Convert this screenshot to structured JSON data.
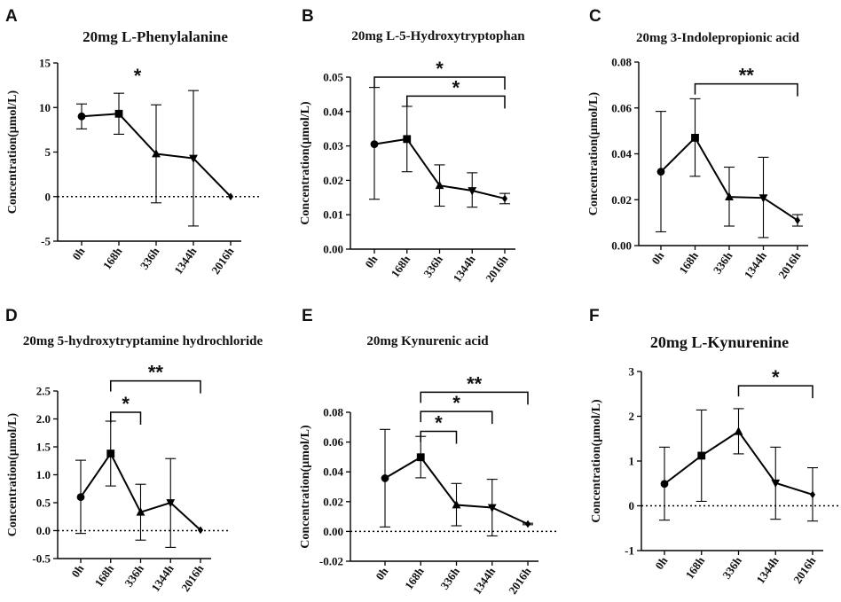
{
  "chart_data": [
    {
      "id": "A",
      "panel_label": "A",
      "type": "line",
      "title": "20mg L-Phenylalanine",
      "xlabel": "",
      "ylabel": "Concentration(μmol/L)",
      "categories": [
        "0h",
        "168h",
        "336h",
        "1344h",
        "2016h"
      ],
      "yticks": [
        -5,
        0,
        5,
        10,
        15
      ],
      "ytick_labels": [
        "-5",
        "0",
        "5",
        "10",
        "15"
      ],
      "ylim": [
        -5,
        15
      ],
      "zero_line": true,
      "series": [
        {
          "name": "20mg L-Phenylalanine",
          "values": [
            9.0,
            9.3,
            4.8,
            4.3,
            0.0
          ],
          "err_low": [
            7.6,
            7.0,
            -0.7,
            -3.3,
            0.0
          ],
          "err_high": [
            10.4,
            11.6,
            10.3,
            11.9,
            0.0
          ],
          "markers": [
            "circle",
            "square",
            "triangle-up",
            "triangle-down",
            "diamond"
          ]
        }
      ],
      "significance": [
        {
          "type": "star",
          "x": 1.5,
          "y": 13.6,
          "label": "*"
        }
      ]
    },
    {
      "id": "B",
      "panel_label": "B",
      "type": "line",
      "title": "20mg L-5-Hydroxytryptophan",
      "xlabel": "",
      "ylabel": "Concentration(μmol/L)",
      "categories": [
        "0h",
        "168h",
        "336h",
        "1344h",
        "2016h"
      ],
      "yticks": [
        0.0,
        0.01,
        0.02,
        0.03,
        0.04,
        0.05
      ],
      "ytick_labels": [
        "0.00",
        "0.01",
        "0.02",
        "0.03",
        "0.04",
        "0.05"
      ],
      "ylim": [
        0,
        0.05
      ],
      "zero_line": false,
      "series": [
        {
          "name": "20mg L-5-Hydroxytryptophan",
          "values": [
            0.0305,
            0.032,
            0.0185,
            0.017,
            0.0147
          ],
          "err_low": [
            0.0145,
            0.0225,
            0.0125,
            0.0122,
            0.0132
          ],
          "err_high": [
            0.047,
            0.0415,
            0.0245,
            0.0222,
            0.0162
          ],
          "markers": [
            "circle",
            "square",
            "triangle-up",
            "triangle-down",
            "diamond"
          ]
        }
      ],
      "significance": [
        {
          "type": "bracket",
          "from": 0,
          "to": 4,
          "y": 0.05,
          "label": "*"
        },
        {
          "type": "bracket",
          "from": 1,
          "to": 4,
          "y": 0.0445,
          "label": "*"
        }
      ]
    },
    {
      "id": "C",
      "panel_label": "C",
      "type": "line",
      "title": "20mg 3-Indolepropionic acid",
      "xlabel": "",
      "ylabel": "Concentration(μmol/L)",
      "categories": [
        "0h",
        "168h",
        "336h",
        "1344h",
        "2016h"
      ],
      "yticks": [
        0.0,
        0.02,
        0.04,
        0.06,
        0.08
      ],
      "ytick_labels": [
        "0.00",
        "0.02",
        "0.04",
        "0.06",
        "0.08"
      ],
      "ylim": [
        0,
        0.08
      ],
      "zero_line": false,
      "series": [
        {
          "name": "20mg 3-Indolepropionic acid",
          "values": [
            0.0322,
            0.047,
            0.0212,
            0.0208,
            0.011
          ],
          "err_low": [
            0.006,
            0.0302,
            0.0085,
            0.0035,
            0.0085
          ],
          "err_high": [
            0.0585,
            0.064,
            0.0342,
            0.0385,
            0.0135
          ],
          "markers": [
            "circle",
            "square",
            "triangle-up",
            "triangle-down",
            "diamond"
          ]
        }
      ],
      "significance": [
        {
          "type": "bracket",
          "from": 1,
          "to": 4,
          "y": 0.0705,
          "label": "**"
        }
      ]
    },
    {
      "id": "D",
      "panel_label": "D",
      "type": "line",
      "title": "20mg 5-hydroxytryptamine hydrochloride",
      "xlabel": "",
      "ylabel": "Concentration(μmol/L)",
      "categories": [
        "0h",
        "168h",
        "336h",
        "1344h",
        "2016h"
      ],
      "yticks": [
        -0.5,
        0.0,
        0.5,
        1.0,
        1.5,
        2.0,
        2.5
      ],
      "ytick_labels": [
        "-0.5",
        "0.0",
        "0.5",
        "1.0",
        "1.5",
        "2.0",
        "2.5"
      ],
      "ylim": [
        -0.5,
        2.5
      ],
      "zero_line": true,
      "series": [
        {
          "name": "20mg 5-hydroxytryptamine hydrochloride",
          "values": [
            0.6,
            1.38,
            0.33,
            0.5,
            0.01
          ],
          "err_low": [
            -0.05,
            0.8,
            -0.17,
            -0.3,
            0.01
          ],
          "err_high": [
            1.26,
            1.96,
            0.83,
            1.29,
            0.01
          ],
          "markers": [
            "circle",
            "square",
            "triangle-up",
            "triangle-down",
            "diamond"
          ]
        }
      ],
      "significance": [
        {
          "type": "bracket",
          "from": 1,
          "to": 4,
          "y": 2.68,
          "label": "**"
        },
        {
          "type": "bracket",
          "from": 1,
          "to": 2,
          "y": 2.12,
          "label": "*"
        }
      ]
    },
    {
      "id": "E",
      "panel_label": "E",
      "type": "line",
      "title": "20mg Kynurenic acid",
      "xlabel": "",
      "ylabel": "Concentration(μmol/L)",
      "categories": [
        "0h",
        "168h",
        "336h",
        "1344h",
        "2016h"
      ],
      "yticks": [
        -0.02,
        0.0,
        0.02,
        0.04,
        0.06,
        0.08
      ],
      "ytick_labels": [
        "-0.02",
        "0.00",
        "0.02",
        "0.04",
        "0.06",
        "0.08"
      ],
      "ylim": [
        -0.02,
        0.08
      ],
      "zero_line": true,
      "series": [
        {
          "name": "20mg Kynurenic acid",
          "values": [
            0.0357,
            0.0498,
            0.0178,
            0.016,
            0.005
          ],
          "err_low": [
            0.003,
            0.036,
            0.0038,
            -0.003,
            0.0045
          ],
          "err_high": [
            0.0685,
            0.0638,
            0.0322,
            0.035,
            0.0055
          ],
          "markers": [
            "circle",
            "square",
            "triangle-up",
            "triangle-down",
            "diamond"
          ]
        }
      ],
      "significance": [
        {
          "type": "bracket",
          "from": 1,
          "to": 4,
          "y": 0.0935,
          "label": "**"
        },
        {
          "type": "bracket",
          "from": 1,
          "to": 3,
          "y": 0.0805,
          "label": "*"
        },
        {
          "type": "bracket",
          "from": 1,
          "to": 2,
          "y": 0.0672,
          "label": "*"
        }
      ]
    },
    {
      "id": "F",
      "panel_label": "F",
      "type": "line",
      "title": "20mg L-Kynurenine",
      "xlabel": "",
      "ylabel": "Concentration(μmol/L)",
      "categories": [
        "0h",
        "168h",
        "336h",
        "1344h",
        "2016h"
      ],
      "yticks": [
        -1,
        0,
        1,
        2,
        3
      ],
      "ytick_labels": [
        "-1",
        "0",
        "1",
        "2",
        "3"
      ],
      "ylim": [
        -1,
        3
      ],
      "zero_line": true,
      "series": [
        {
          "name": "20mg L-Kynurenine",
          "values": [
            0.49,
            1.12,
            1.66,
            0.51,
            0.25
          ],
          "err_low": [
            -0.32,
            0.1,
            1.16,
            -0.3,
            -0.34
          ],
          "err_high": [
            1.31,
            2.14,
            2.17,
            1.31,
            0.85
          ],
          "markers": [
            "circle",
            "square",
            "triangle-up",
            "triangle-down",
            "diamond"
          ]
        }
      ],
      "significance": [
        {
          "type": "bracket",
          "from": 2,
          "to": 4,
          "y": 2.68,
          "label": "*"
        }
      ]
    }
  ]
}
